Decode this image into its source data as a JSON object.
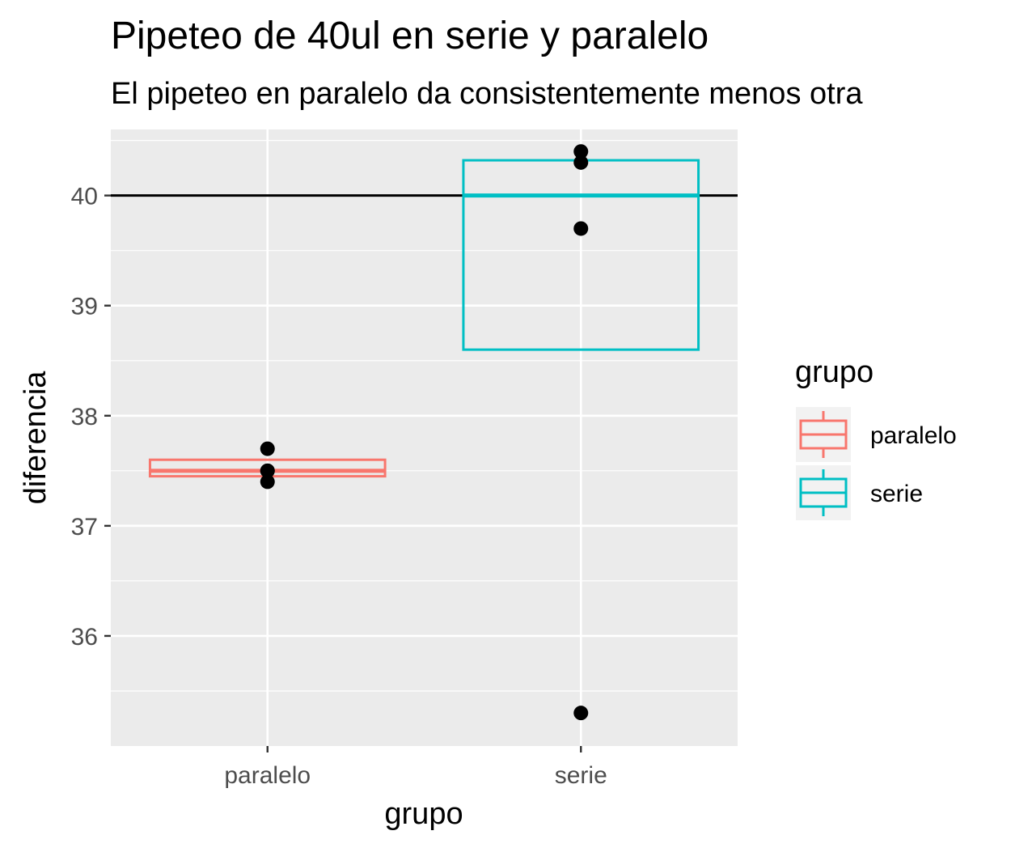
{
  "chart_data": {
    "type": "box",
    "title": "Pipeteo de 40ul en serie y paralelo",
    "subtitle": "El pipeteo en paralelo da consistentemente menos otra",
    "xlabel": "grupo",
    "ylabel": "diferencia",
    "categories": [
      "paralelo",
      "serie"
    ],
    "ylim": [
      35.0,
      40.6
    ],
    "yticks": [
      36,
      37,
      38,
      39,
      40
    ],
    "reference_line_y": 40,
    "grid": true,
    "boxes": [
      {
        "group": "paralelo",
        "lower": 37.45,
        "median": 37.5,
        "upper": 37.6,
        "color": "#F8766D"
      },
      {
        "group": "serie",
        "lower": 38.6,
        "median": 40.0,
        "upper": 40.32,
        "color": "#00BFC4"
      }
    ],
    "points": [
      {
        "group": "paralelo",
        "y": 37.7
      },
      {
        "group": "paralelo",
        "y": 37.5
      },
      {
        "group": "paralelo",
        "y": 37.5
      },
      {
        "group": "paralelo",
        "y": 37.4
      },
      {
        "group": "serie",
        "y": 40.4
      },
      {
        "group": "serie",
        "y": 40.3
      },
      {
        "group": "serie",
        "y": 39.7
      },
      {
        "group": "serie",
        "y": 35.3
      }
    ],
    "legend": {
      "title": "grupo",
      "position": "right",
      "entries": [
        {
          "label": "paralelo",
          "color": "#F8766D"
        },
        {
          "label": "serie",
          "color": "#00BFC4"
        }
      ]
    },
    "colors": {
      "panel": "#EBEBEB",
      "grid": "#FFFFFF",
      "points": "#000000",
      "reference_line": "#000000"
    }
  }
}
